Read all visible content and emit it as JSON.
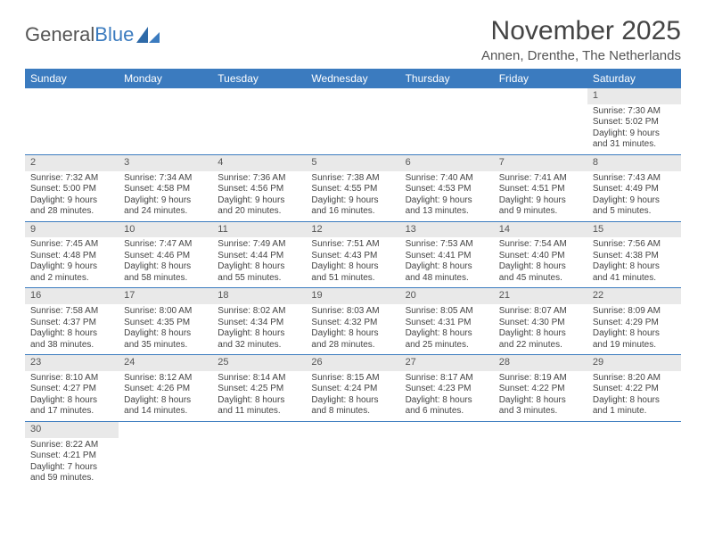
{
  "logo": {
    "text_general": "General",
    "text_blue": "Blue"
  },
  "title": "November 2025",
  "location": "Annen, Drenthe, The Netherlands",
  "colors": {
    "header_bg": "#3b7bbf",
    "daynum_bg": "#e9e9e9",
    "row_border": "#3b7bbf"
  },
  "weekdays": [
    "Sunday",
    "Monday",
    "Tuesday",
    "Wednesday",
    "Thursday",
    "Friday",
    "Saturday"
  ],
  "weeks": [
    [
      null,
      null,
      null,
      null,
      null,
      null,
      {
        "d": "1",
        "sr": "Sunrise: 7:30 AM",
        "ss": "Sunset: 5:02 PM",
        "dl1": "Daylight: 9 hours",
        "dl2": "and 31 minutes."
      }
    ],
    [
      {
        "d": "2",
        "sr": "Sunrise: 7:32 AM",
        "ss": "Sunset: 5:00 PM",
        "dl1": "Daylight: 9 hours",
        "dl2": "and 28 minutes."
      },
      {
        "d": "3",
        "sr": "Sunrise: 7:34 AM",
        "ss": "Sunset: 4:58 PM",
        "dl1": "Daylight: 9 hours",
        "dl2": "and 24 minutes."
      },
      {
        "d": "4",
        "sr": "Sunrise: 7:36 AM",
        "ss": "Sunset: 4:56 PM",
        "dl1": "Daylight: 9 hours",
        "dl2": "and 20 minutes."
      },
      {
        "d": "5",
        "sr": "Sunrise: 7:38 AM",
        "ss": "Sunset: 4:55 PM",
        "dl1": "Daylight: 9 hours",
        "dl2": "and 16 minutes."
      },
      {
        "d": "6",
        "sr": "Sunrise: 7:40 AM",
        "ss": "Sunset: 4:53 PM",
        "dl1": "Daylight: 9 hours",
        "dl2": "and 13 minutes."
      },
      {
        "d": "7",
        "sr": "Sunrise: 7:41 AM",
        "ss": "Sunset: 4:51 PM",
        "dl1": "Daylight: 9 hours",
        "dl2": "and 9 minutes."
      },
      {
        "d": "8",
        "sr": "Sunrise: 7:43 AM",
        "ss": "Sunset: 4:49 PM",
        "dl1": "Daylight: 9 hours",
        "dl2": "and 5 minutes."
      }
    ],
    [
      {
        "d": "9",
        "sr": "Sunrise: 7:45 AM",
        "ss": "Sunset: 4:48 PM",
        "dl1": "Daylight: 9 hours",
        "dl2": "and 2 minutes."
      },
      {
        "d": "10",
        "sr": "Sunrise: 7:47 AM",
        "ss": "Sunset: 4:46 PM",
        "dl1": "Daylight: 8 hours",
        "dl2": "and 58 minutes."
      },
      {
        "d": "11",
        "sr": "Sunrise: 7:49 AM",
        "ss": "Sunset: 4:44 PM",
        "dl1": "Daylight: 8 hours",
        "dl2": "and 55 minutes."
      },
      {
        "d": "12",
        "sr": "Sunrise: 7:51 AM",
        "ss": "Sunset: 4:43 PM",
        "dl1": "Daylight: 8 hours",
        "dl2": "and 51 minutes."
      },
      {
        "d": "13",
        "sr": "Sunrise: 7:53 AM",
        "ss": "Sunset: 4:41 PM",
        "dl1": "Daylight: 8 hours",
        "dl2": "and 48 minutes."
      },
      {
        "d": "14",
        "sr": "Sunrise: 7:54 AM",
        "ss": "Sunset: 4:40 PM",
        "dl1": "Daylight: 8 hours",
        "dl2": "and 45 minutes."
      },
      {
        "d": "15",
        "sr": "Sunrise: 7:56 AM",
        "ss": "Sunset: 4:38 PM",
        "dl1": "Daylight: 8 hours",
        "dl2": "and 41 minutes."
      }
    ],
    [
      {
        "d": "16",
        "sr": "Sunrise: 7:58 AM",
        "ss": "Sunset: 4:37 PM",
        "dl1": "Daylight: 8 hours",
        "dl2": "and 38 minutes."
      },
      {
        "d": "17",
        "sr": "Sunrise: 8:00 AM",
        "ss": "Sunset: 4:35 PM",
        "dl1": "Daylight: 8 hours",
        "dl2": "and 35 minutes."
      },
      {
        "d": "18",
        "sr": "Sunrise: 8:02 AM",
        "ss": "Sunset: 4:34 PM",
        "dl1": "Daylight: 8 hours",
        "dl2": "and 32 minutes."
      },
      {
        "d": "19",
        "sr": "Sunrise: 8:03 AM",
        "ss": "Sunset: 4:32 PM",
        "dl1": "Daylight: 8 hours",
        "dl2": "and 28 minutes."
      },
      {
        "d": "20",
        "sr": "Sunrise: 8:05 AM",
        "ss": "Sunset: 4:31 PM",
        "dl1": "Daylight: 8 hours",
        "dl2": "and 25 minutes."
      },
      {
        "d": "21",
        "sr": "Sunrise: 8:07 AM",
        "ss": "Sunset: 4:30 PM",
        "dl1": "Daylight: 8 hours",
        "dl2": "and 22 minutes."
      },
      {
        "d": "22",
        "sr": "Sunrise: 8:09 AM",
        "ss": "Sunset: 4:29 PM",
        "dl1": "Daylight: 8 hours",
        "dl2": "and 19 minutes."
      }
    ],
    [
      {
        "d": "23",
        "sr": "Sunrise: 8:10 AM",
        "ss": "Sunset: 4:27 PM",
        "dl1": "Daylight: 8 hours",
        "dl2": "and 17 minutes."
      },
      {
        "d": "24",
        "sr": "Sunrise: 8:12 AM",
        "ss": "Sunset: 4:26 PM",
        "dl1": "Daylight: 8 hours",
        "dl2": "and 14 minutes."
      },
      {
        "d": "25",
        "sr": "Sunrise: 8:14 AM",
        "ss": "Sunset: 4:25 PM",
        "dl1": "Daylight: 8 hours",
        "dl2": "and 11 minutes."
      },
      {
        "d": "26",
        "sr": "Sunrise: 8:15 AM",
        "ss": "Sunset: 4:24 PM",
        "dl1": "Daylight: 8 hours",
        "dl2": "and 8 minutes."
      },
      {
        "d": "27",
        "sr": "Sunrise: 8:17 AM",
        "ss": "Sunset: 4:23 PM",
        "dl1": "Daylight: 8 hours",
        "dl2": "and 6 minutes."
      },
      {
        "d": "28",
        "sr": "Sunrise: 8:19 AM",
        "ss": "Sunset: 4:22 PM",
        "dl1": "Daylight: 8 hours",
        "dl2": "and 3 minutes."
      },
      {
        "d": "29",
        "sr": "Sunrise: 8:20 AM",
        "ss": "Sunset: 4:22 PM",
        "dl1": "Daylight: 8 hours",
        "dl2": "and 1 minute."
      }
    ],
    [
      {
        "d": "30",
        "sr": "Sunrise: 8:22 AM",
        "ss": "Sunset: 4:21 PM",
        "dl1": "Daylight: 7 hours",
        "dl2": "and 59 minutes."
      },
      null,
      null,
      null,
      null,
      null,
      null
    ]
  ]
}
